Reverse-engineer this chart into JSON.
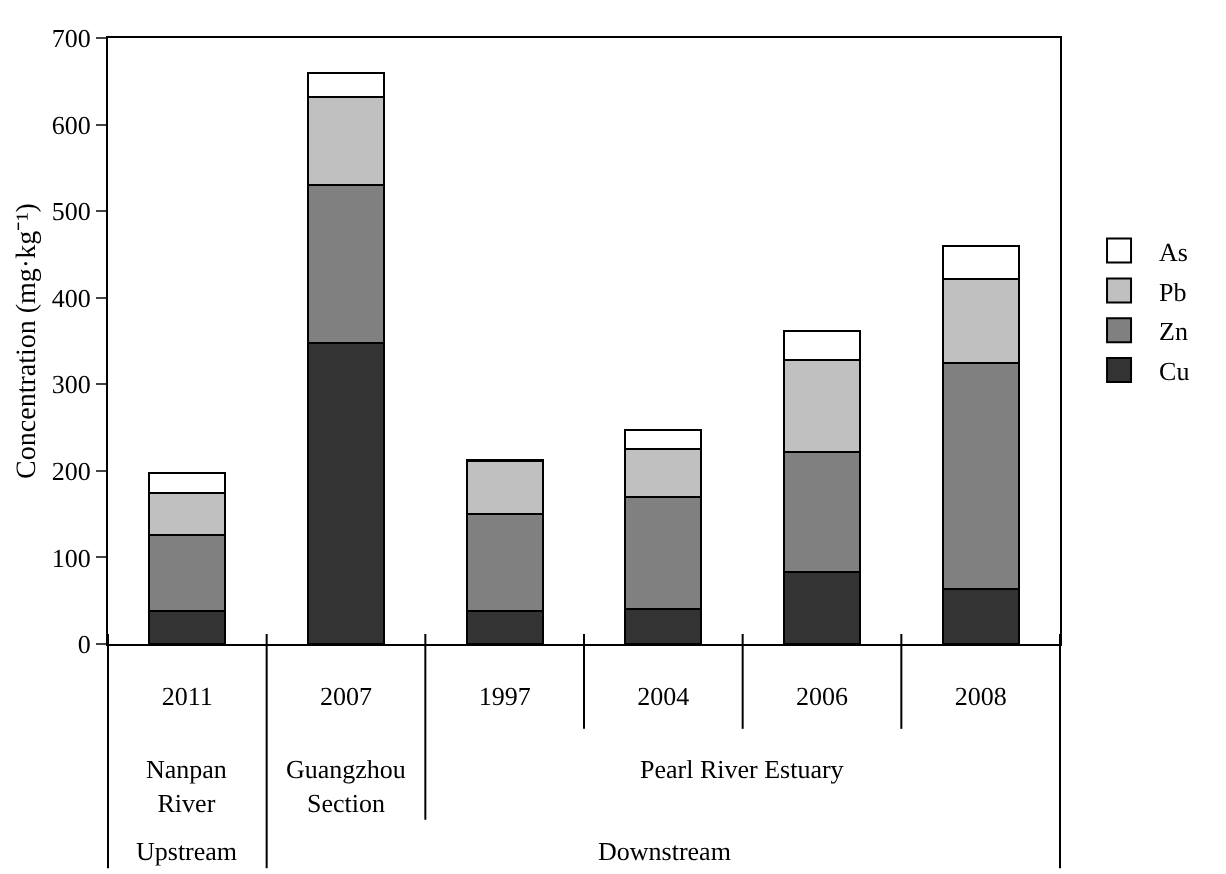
{
  "chart_data": {
    "type": "bar",
    "stacked": true,
    "ylabel": "Concentration (mg·kg⁻¹)",
    "categories": [
      "2011",
      "2007",
      "1997",
      "2004",
      "2006",
      "2008"
    ],
    "series": [
      {
        "name": "Cu",
        "color": "#333333",
        "values": [
          38,
          348,
          38,
          40,
          83,
          64
        ]
      },
      {
        "name": "Zn",
        "color": "#808080",
        "values": [
          88,
          182,
          112,
          130,
          139,
          261
        ]
      },
      {
        "name": "Pb",
        "color": "#c0c0c0",
        "values": [
          49,
          102,
          61,
          55,
          106,
          97
        ]
      },
      {
        "name": "As",
        "color": "#ffffff",
        "values": [
          22,
          28,
          2,
          22,
          34,
          38
        ]
      }
    ],
    "annotations": [
      "Nanpan River",
      "Guangzhou Section",
      "Pearl River Estuary",
      "Upstream",
      "Downstream"
    ],
    "ylim": [
      0,
      700
    ],
    "yticks": [
      0,
      100,
      200,
      300,
      400,
      500,
      600,
      700
    ],
    "grid": false,
    "legend": "right"
  }
}
